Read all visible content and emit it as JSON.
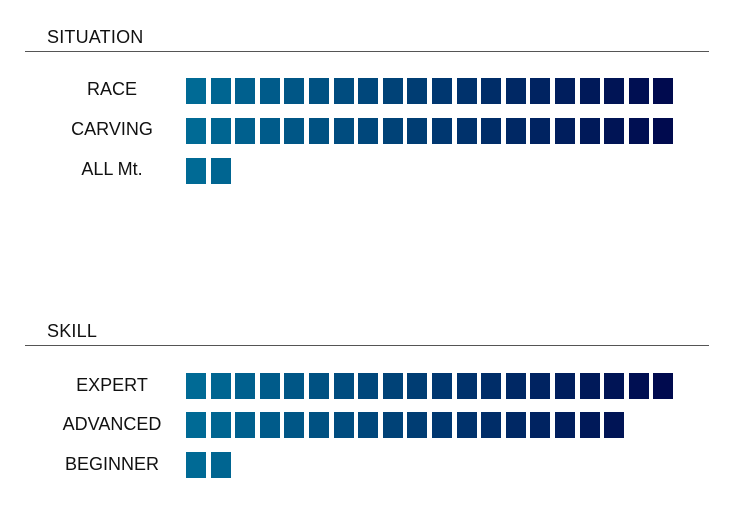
{
  "colors": {
    "block_start": "#006a95",
    "block_end": "#000a4e",
    "rule": "#555555"
  },
  "chart_data": [
    {
      "type": "bar",
      "title": "SITUATION",
      "max_blocks": 20,
      "categories": [
        "RACE",
        "CARVING",
        "ALL Mt."
      ],
      "values": [
        20,
        20,
        2
      ]
    },
    {
      "type": "bar",
      "title": "SKILL",
      "max_blocks": 20,
      "categories": [
        "EXPERT",
        "ADVANCED",
        "BEGINNER"
      ],
      "values": [
        20,
        18,
        2
      ]
    }
  ]
}
